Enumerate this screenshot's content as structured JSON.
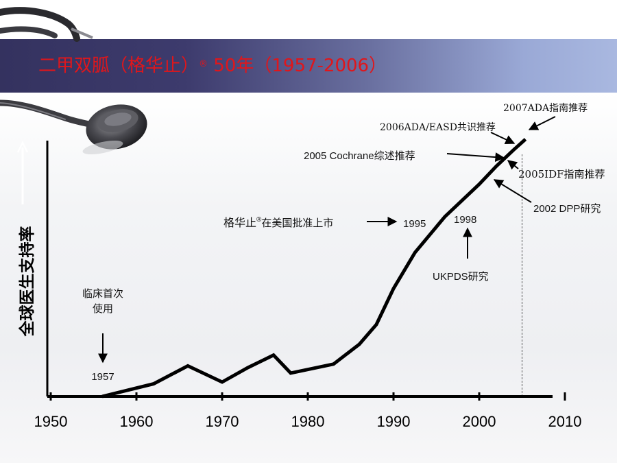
{
  "slide": {
    "title_main": "二甲双胍（格华止）",
    "title_mark": "®",
    "title_rest": " 50年（1957-2006）"
  },
  "chart_data": {
    "type": "line",
    "title": "二甲双胍（格华止）® 50年（1957-2006）",
    "xlabel": "",
    "ylabel": "全球医生支持率",
    "xlim": [
      1950,
      2010
    ],
    "x_ticks": [
      "1950",
      "1960",
      "1970",
      "1980",
      "1990",
      "2000",
      "2010"
    ],
    "y_ticks_shown": false,
    "series": [
      {
        "x": [
          1956,
          1962,
          1966,
          1970,
          1973,
          1976,
          1978,
          1983,
          1986,
          1988,
          1990,
          1992.5,
          1996,
          2000,
          2002,
          2004,
          2005.4
        ],
        "y": [
          0,
          7,
          17,
          8,
          16,
          23,
          13,
          18,
          29,
          40,
          60,
          80,
          100,
          118,
          128,
          137,
          143
        ]
      }
    ],
    "reference_line": {
      "x": 2005,
      "style": "dashed"
    },
    "annotations": [
      {
        "label_lines": [
          "临床首次",
          "使用"
        ],
        "year_label": "1957",
        "arrow": "down"
      },
      {
        "label": "格华止",
        "label_mark": "®",
        "label_rest": "在美国批准上市",
        "year_label": "1995",
        "arrow": "right"
      },
      {
        "label": "UKPDS研究",
        "year_label": "1998",
        "arrow": "up"
      },
      {
        "label": "2002 DPP研究",
        "arrow": "to-curve"
      },
      {
        "label": "2005 Cochrane综述推荐",
        "arrow": "to-curve"
      },
      {
        "label": "2005IDF指南推荐",
        "arrow": "to-curve"
      },
      {
        "label": "2006ADA/EASD共识推荐",
        "arrow": "to-curve"
      },
      {
        "label": "2007ADA指南推荐",
        "arrow": "to-curve"
      }
    ]
  },
  "colors": {
    "title_text": "#e0161b",
    "title_bar_left": "#34325f",
    "title_bar_right": "#a9b8e0",
    "ink": "#000000"
  },
  "icons": [
    "stethoscope-icon"
  ]
}
